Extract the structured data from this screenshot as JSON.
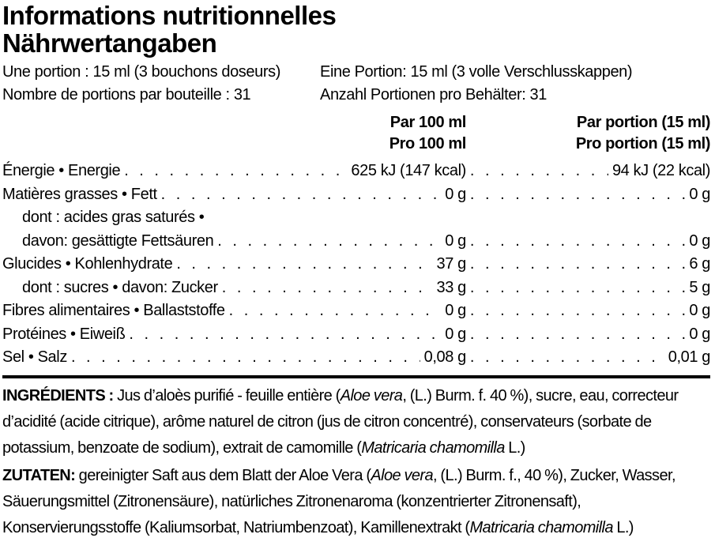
{
  "colors": {
    "text": "#000000",
    "background": "#ffffff"
  },
  "title": {
    "fr": "Informations nutritionnelles",
    "de": "Nährwertangaben"
  },
  "serving": {
    "fr_portion": "Une portion : 15 ml (3 bouchons doseurs)",
    "fr_count": "Nombre de portions par bouteille : 31",
    "de_portion": "Eine Portion: 15 ml (3 volle Verschlusskappen)",
    "de_count": "Anzahl Portionen pro Behälter: 31"
  },
  "table": {
    "headers": {
      "per100": [
        "Par 100 ml",
        "Pro 100 ml"
      ],
      "perPortion": [
        "Par portion (15 ml)",
        "Pro portion (15 ml)"
      ]
    },
    "rows": [
      {
        "label": "Énergie • Energie",
        "indent": false,
        "per100": "625 kJ (147 kcal)",
        "perPortion": "94 kJ (22 kcal)"
      },
      {
        "label": "Matières grasses • Fett",
        "indent": false,
        "per100": "0 g",
        "perPortion": "0 g"
      },
      {
        "label": "dont : acides gras saturés •",
        "indent": true,
        "per100": "",
        "perPortion": ""
      },
      {
        "label": "davon: gesättigte Fettsäuren",
        "indent": true,
        "per100": "0 g",
        "perPortion": "0 g"
      },
      {
        "label": "Glucides • Kohlenhydrate",
        "indent": false,
        "per100": "37 g",
        "perPortion": "6 g"
      },
      {
        "label": "dont : sucres • davon: Zucker",
        "indent": true,
        "per100": "33 g",
        "perPortion": "5 g"
      },
      {
        "label": "Fibres alimentaires • Ballaststoffe",
        "indent": false,
        "per100": "0 g",
        "perPortion": "0 g"
      },
      {
        "label": "Protéines • Eiweiß",
        "indent": false,
        "per100": "0 g",
        "perPortion": "0 g"
      },
      {
        "label": "Sel • Salz",
        "indent": false,
        "per100": "0,08 g",
        "perPortion": "0,01 g"
      }
    ]
  },
  "ingredients": {
    "fr": [
      {
        "t": "INGRÉDIENTS : ",
        "b": true
      },
      {
        "t": "Jus d’aloès purifié - feuille entière ("
      },
      {
        "t": "Aloe vera",
        "i": true
      },
      {
        "t": ", (L.) Burm. f. 40 %), sucre, eau, correcteur d’acidité (acide citrique), arôme naturel de citron (jus de citron concentré), conservateurs (sorbate de potassium, benzoate de sodium), extrait de camomille ("
      },
      {
        "t": "Matricaria chamomilla",
        "i": true
      },
      {
        "t": " L.)"
      }
    ],
    "de": [
      {
        "t": "ZUTATEN: ",
        "b": true
      },
      {
        "t": "gereinigter Saft aus dem Blatt der Aloe Vera ("
      },
      {
        "t": "Aloe vera",
        "i": true
      },
      {
        "t": ", (L.) Burm. f., 40 %), Zucker, Wasser, Säuerungsmittel (Zitronensäure), natürliches Zitronenaroma (konzentrierter Zitronensaft), Konservierungsstoffe (Kaliumsorbat, Natriumbenzoat), Kamillenextrakt ("
      },
      {
        "t": "Matricaria chamomilla",
        "i": true
      },
      {
        "t": " L.)"
      }
    ]
  }
}
